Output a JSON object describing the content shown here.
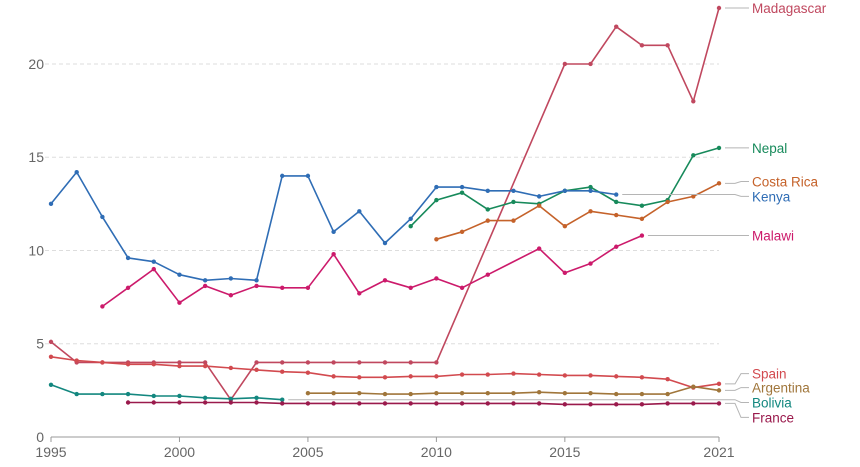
{
  "chart_data": {
    "type": "line",
    "xlim": [
      1995,
      2021
    ],
    "ylim": [
      0,
      23
    ],
    "x_ticks": [
      1995,
      2000,
      2005,
      2010,
      2015,
      2021
    ],
    "x_tick_labels": [
      "1995",
      "2000",
      "2005",
      "2010",
      "2015",
      "2021"
    ],
    "y_ticks": [
      0,
      5,
      10,
      15,
      20
    ],
    "y_tick_labels": [
      "0",
      "5",
      "10",
      "15",
      "20"
    ],
    "grid": "horizontal-dashed",
    "legend": "labels at right end of lines",
    "series": [
      {
        "name": "Madagascar",
        "color": "#c0485f",
        "label_y": 23,
        "points": [
          [
            1995,
            5.1
          ],
          [
            1996,
            4.0
          ],
          [
            1997,
            4.0
          ],
          [
            1998,
            4.0
          ],
          [
            1999,
            4.0
          ],
          [
            2000,
            4.0
          ],
          [
            2001,
            4.0
          ],
          [
            2002,
            2.0
          ],
          [
            2003,
            4.0
          ],
          [
            2004,
            4.0
          ],
          [
            2005,
            4.0
          ],
          [
            2006,
            4.0
          ],
          [
            2007,
            4.0
          ],
          [
            2008,
            4.0
          ],
          [
            2009,
            4.0
          ],
          [
            2010,
            4.0
          ],
          [
            2015,
            20.0
          ],
          [
            2016,
            20.0
          ],
          [
            2017,
            22.0
          ],
          [
            2018,
            21.0
          ],
          [
            2019,
            21.0
          ],
          [
            2020,
            18.0
          ],
          [
            2021,
            23.0
          ]
        ]
      },
      {
        "name": "Nepal",
        "color": "#178a5b",
        "label_y": 15.5,
        "points": [
          [
            2009,
            11.3
          ],
          [
            2010,
            12.7
          ],
          [
            2011,
            13.1
          ],
          [
            2012,
            12.2
          ],
          [
            2013,
            12.6
          ],
          [
            2014,
            12.5
          ],
          [
            2015,
            13.2
          ],
          [
            2016,
            13.4
          ],
          [
            2017,
            12.6
          ],
          [
            2018,
            12.4
          ],
          [
            2019,
            12.7
          ],
          [
            2020,
            15.1
          ],
          [
            2021,
            15.5
          ]
        ]
      },
      {
        "name": "Costa Rica",
        "color": "#c5622a",
        "label_y": 13.7,
        "points": [
          [
            2010,
            10.6
          ],
          [
            2011,
            11.0
          ],
          [
            2012,
            11.6
          ],
          [
            2013,
            11.6
          ],
          [
            2014,
            12.4
          ],
          [
            2015,
            11.3
          ],
          [
            2016,
            12.1
          ],
          [
            2017,
            11.9
          ],
          [
            2018,
            11.7
          ],
          [
            2019,
            12.6
          ],
          [
            2020,
            12.9
          ],
          [
            2021,
            13.6
          ]
        ]
      },
      {
        "name": "Kenya",
        "color": "#2f6db5",
        "label_y": 12.9,
        "points": [
          [
            1995,
            12.5
          ],
          [
            1996,
            14.2
          ],
          [
            1997,
            11.8
          ],
          [
            1998,
            9.6
          ],
          [
            1999,
            9.4
          ],
          [
            2000,
            8.7
          ],
          [
            2001,
            8.4
          ],
          [
            2002,
            8.5
          ],
          [
            2003,
            8.4
          ],
          [
            2004,
            14.0
          ],
          [
            2005,
            14.0
          ],
          [
            2006,
            11.0
          ],
          [
            2007,
            12.1
          ],
          [
            2008,
            10.4
          ],
          [
            2009,
            11.7
          ],
          [
            2010,
            13.4
          ],
          [
            2011,
            13.4
          ],
          [
            2012,
            13.2
          ],
          [
            2013,
            13.2
          ],
          [
            2014,
            12.9
          ],
          [
            2015,
            13.2
          ],
          [
            2016,
            13.2
          ],
          [
            2017,
            13.0
          ]
        ]
      },
      {
        "name": "Malawi",
        "color": "#cc1a6b",
        "label_y": 10.8,
        "points": [
          [
            1997,
            7.0
          ],
          [
            1998,
            8.0
          ],
          [
            1999,
            9.0
          ],
          [
            2000,
            7.2
          ],
          [
            2001,
            8.1
          ],
          [
            2002,
            7.6
          ],
          [
            2003,
            8.1
          ],
          [
            2004,
            8.0
          ],
          [
            2005,
            8.0
          ],
          [
            2006,
            9.8
          ],
          [
            2007,
            7.7
          ],
          [
            2008,
            8.4
          ],
          [
            2009,
            8.0
          ],
          [
            2010,
            8.5
          ],
          [
            2011,
            8.0
          ],
          [
            2012,
            8.7
          ],
          [
            2014,
            10.1
          ],
          [
            2015,
            8.8
          ],
          [
            2016,
            9.3
          ],
          [
            2017,
            10.2
          ],
          [
            2018,
            10.8
          ]
        ]
      },
      {
        "name": "Spain",
        "color": "#d24a4f",
        "label_y": 3.4,
        "points": [
          [
            1995,
            4.3
          ],
          [
            1996,
            4.1
          ],
          [
            1997,
            4.0
          ],
          [
            1998,
            3.9
          ],
          [
            1999,
            3.9
          ],
          [
            2000,
            3.8
          ],
          [
            2001,
            3.8
          ],
          [
            2002,
            3.7
          ],
          [
            2003,
            3.6
          ],
          [
            2004,
            3.5
          ],
          [
            2005,
            3.45
          ],
          [
            2006,
            3.25
          ],
          [
            2007,
            3.2
          ],
          [
            2008,
            3.2
          ],
          [
            2009,
            3.25
          ],
          [
            2010,
            3.25
          ],
          [
            2011,
            3.35
          ],
          [
            2012,
            3.35
          ],
          [
            2013,
            3.4
          ],
          [
            2014,
            3.35
          ],
          [
            2015,
            3.3
          ],
          [
            2016,
            3.3
          ],
          [
            2017,
            3.25
          ],
          [
            2018,
            3.2
          ],
          [
            2019,
            3.1
          ],
          [
            2020,
            2.65
          ],
          [
            2021,
            2.85
          ]
        ]
      },
      {
        "name": "Argentina",
        "color": "#a0763b",
        "label_y": 2.65,
        "points": [
          [
            2005,
            2.35
          ],
          [
            2006,
            2.35
          ],
          [
            2007,
            2.35
          ],
          [
            2008,
            2.3
          ],
          [
            2009,
            2.3
          ],
          [
            2010,
            2.35
          ],
          [
            2011,
            2.35
          ],
          [
            2012,
            2.35
          ],
          [
            2013,
            2.35
          ],
          [
            2014,
            2.4
          ],
          [
            2015,
            2.35
          ],
          [
            2016,
            2.35
          ],
          [
            2017,
            2.3
          ],
          [
            2018,
            2.3
          ],
          [
            2019,
            2.3
          ],
          [
            2020,
            2.7
          ],
          [
            2021,
            2.5
          ]
        ]
      },
      {
        "name": "Bolivia",
        "color": "#13877f",
        "label_y": 1.85,
        "points": [
          [
            1995,
            2.8
          ],
          [
            1996,
            2.3
          ],
          [
            1997,
            2.3
          ],
          [
            1998,
            2.3
          ],
          [
            1999,
            2.2
          ],
          [
            2000,
            2.2
          ],
          [
            2001,
            2.1
          ],
          [
            2002,
            2.05
          ],
          [
            2003,
            2.1
          ],
          [
            2004,
            2.0
          ]
        ]
      },
      {
        "name": "France",
        "color": "#9a1a4c",
        "label_y": 1.05,
        "points": [
          [
            1998,
            1.85
          ],
          [
            1999,
            1.85
          ],
          [
            2000,
            1.85
          ],
          [
            2001,
            1.85
          ],
          [
            2002,
            1.85
          ],
          [
            2003,
            1.85
          ],
          [
            2004,
            1.8
          ],
          [
            2005,
            1.8
          ],
          [
            2006,
            1.8
          ],
          [
            2007,
            1.8
          ],
          [
            2008,
            1.8
          ],
          [
            2009,
            1.8
          ],
          [
            2010,
            1.8
          ],
          [
            2011,
            1.8
          ],
          [
            2012,
            1.8
          ],
          [
            2013,
            1.8
          ],
          [
            2014,
            1.8
          ],
          [
            2015,
            1.75
          ],
          [
            2016,
            1.75
          ],
          [
            2017,
            1.75
          ],
          [
            2018,
            1.75
          ],
          [
            2019,
            1.8
          ],
          [
            2020,
            1.8
          ],
          [
            2021,
            1.8
          ]
        ]
      }
    ]
  }
}
